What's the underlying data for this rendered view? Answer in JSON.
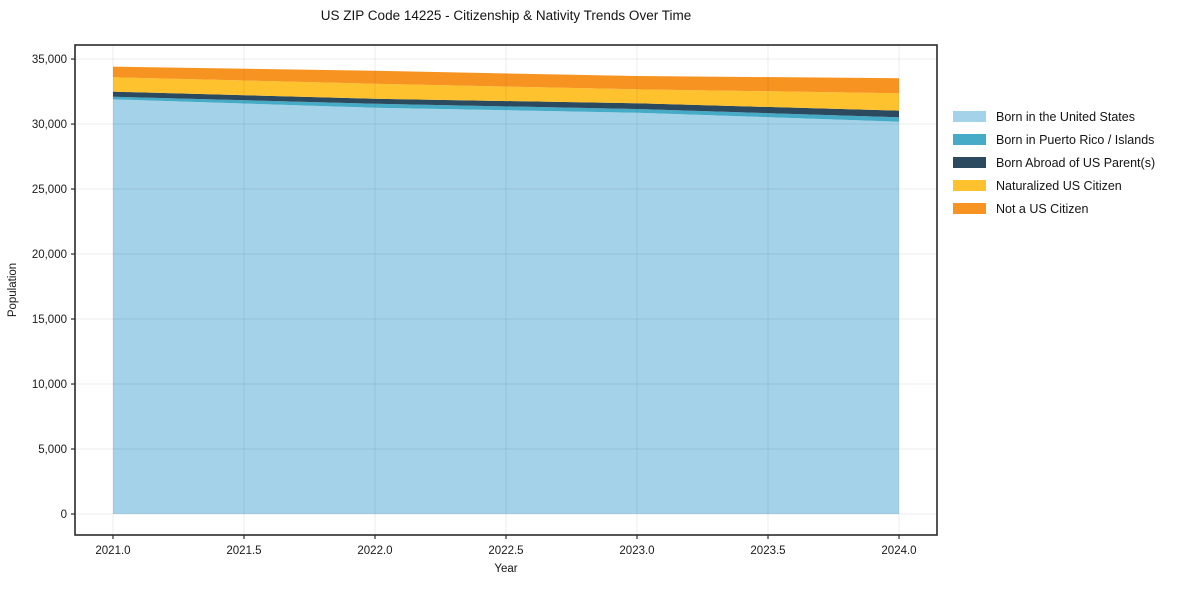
{
  "title": "US ZIP Code 14225 - Citizenship & Nativity Trends Over Time",
  "chart_data": {
    "type": "area",
    "stacked": true,
    "title": "US ZIP Code 14225 - Citizenship & Nativity Trends Over Time",
    "xlabel": "Year",
    "ylabel": "Population",
    "x": [
      2021,
      2022,
      2023,
      2024
    ],
    "series": [
      {
        "name": "Born in the United States",
        "color": "#a3d2e9",
        "values": [
          31900,
          31250,
          30870,
          30180
        ]
      },
      {
        "name": "Born in Puerto Rico / Islands",
        "color": "#46abc6",
        "values": [
          200,
          310,
          285,
          340
        ]
      },
      {
        "name": "Born Abroad of US Parent(s)",
        "color": "#2b4a5f",
        "values": [
          390,
          385,
          440,
          510
        ]
      },
      {
        "name": "Naturalized US Citizen",
        "color": "#fdc22e",
        "values": [
          1110,
          1150,
          1075,
          1340
        ]
      },
      {
        "name": "Not a US Citizen",
        "color": "#f79421",
        "values": [
          815,
          1000,
          1025,
          1155
        ]
      }
    ],
    "stack_totals": [
      34415,
      34095,
      33695,
      33525
    ],
    "xlim": [
      2020.855,
      2024.145
    ],
    "ylim": [
      -1615,
      36080
    ],
    "x_tick_values": [
      2021.0,
      2021.5,
      2022.0,
      2022.5,
      2023.0,
      2023.5,
      2024.0
    ],
    "x_tick_labels": [
      "2021.0",
      "2021.5",
      "2022.0",
      "2022.5",
      "2023.0",
      "2023.5",
      "2024.0"
    ],
    "y_tick_values": [
      0,
      5000,
      10000,
      15000,
      20000,
      25000,
      30000,
      35000
    ],
    "y_tick_labels": [
      "0",
      "5,000",
      "10,000",
      "15,000",
      "20,000",
      "25,000",
      "30,000",
      "35,000"
    ],
    "grid": true,
    "legend_position": "right-outside"
  }
}
